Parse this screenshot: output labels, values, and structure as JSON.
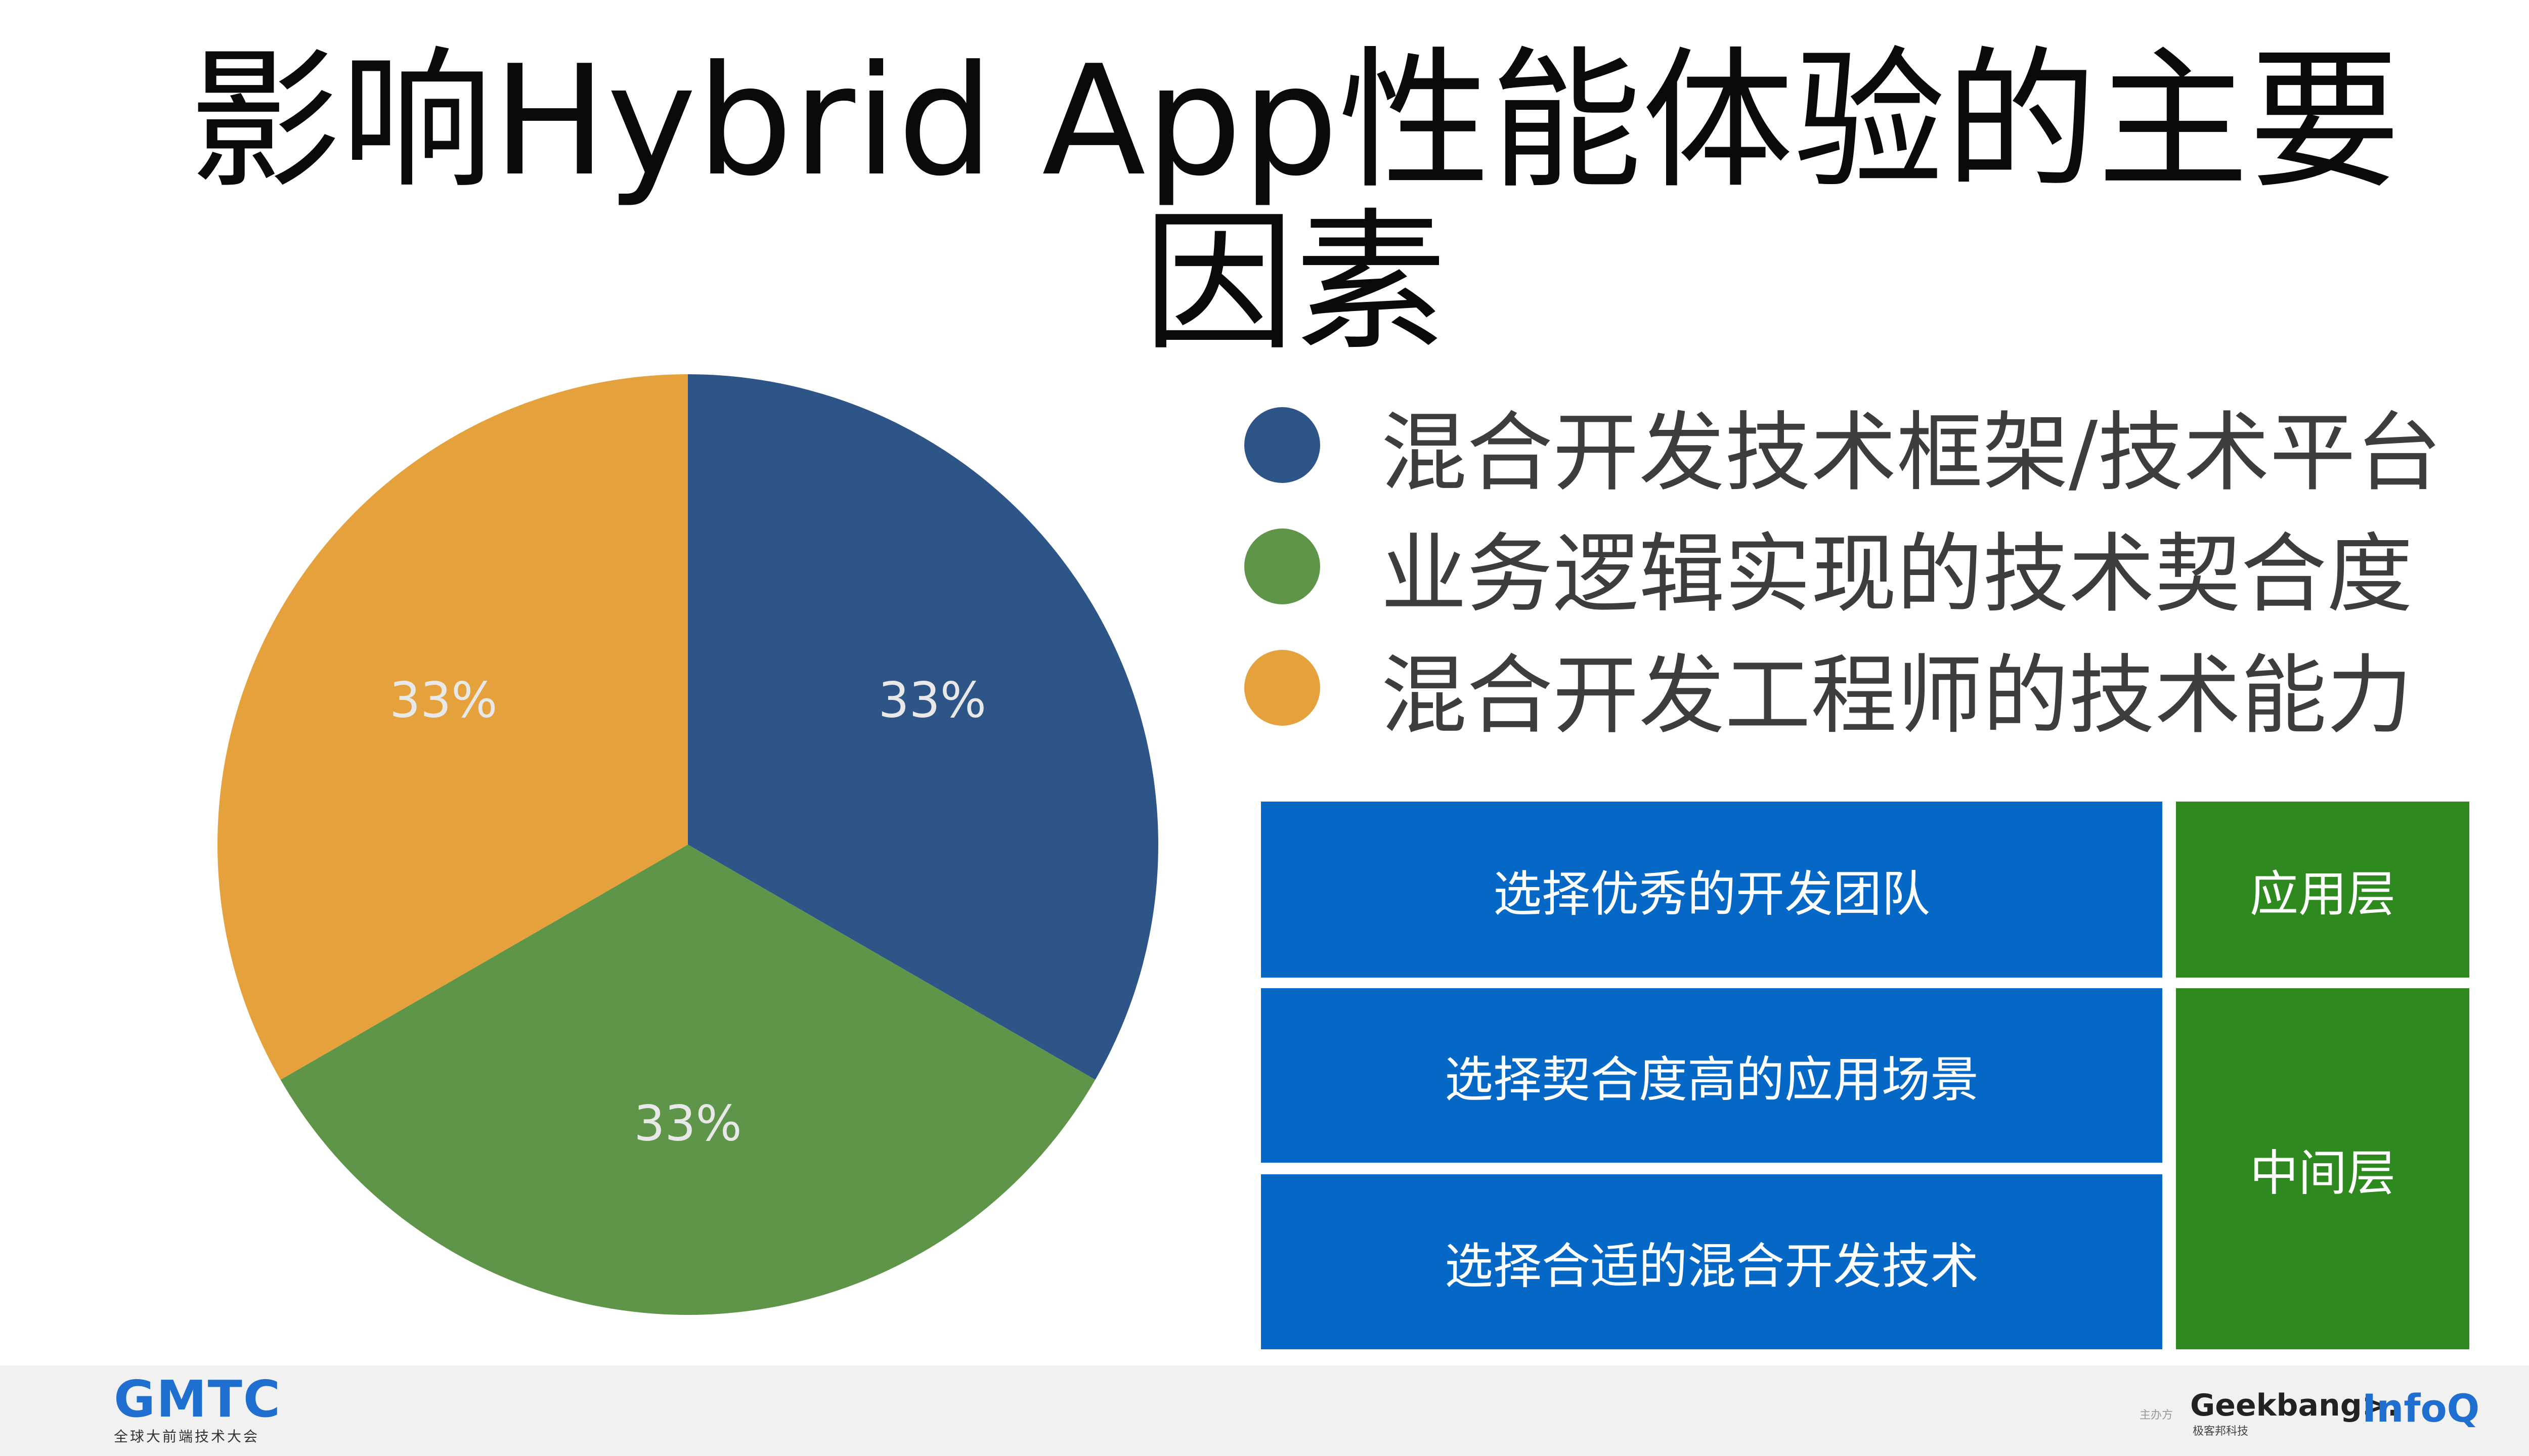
{
  "slide": {
    "title": "影响Hybrid App性能体验的主要因素"
  },
  "chart_data": {
    "type": "pie",
    "categories": [
      "混合开发技术框架/技术平台",
      "业务逻辑实现的技术契合度",
      "混合开发工程师的技术能力"
    ],
    "values": [
      33,
      33,
      33
    ],
    "data_labels": [
      "33%",
      "33%",
      "33%"
    ],
    "colors": [
      "#2e5587",
      "#5e9549",
      "#e5a23c"
    ],
    "label_color": "#e8e8e8",
    "legend_position": "right"
  },
  "legend": [
    {
      "label": "混合开发技术框架/技术平台",
      "color": "#2e5587"
    },
    {
      "label": "业务逻辑实现的技术契合度",
      "color": "#5e9549"
    },
    {
      "label": "混合开发工程师的技术能力",
      "color": "#e5a23c"
    }
  ],
  "table": {
    "rows": [
      {
        "text": "选择优秀的开发团队"
      },
      {
        "text": "选择契合度高的应用场景"
      },
      {
        "text": "选择合适的混合开发技术"
      }
    ],
    "layers": [
      {
        "text": "应用层"
      },
      {
        "text": "中间层"
      }
    ],
    "colors": {
      "blue": "#0568c6",
      "green": "#2e8a1f"
    }
  },
  "footer": {
    "logo_text": "GMTC",
    "logo_subtitle": "全球大前端技术大会",
    "host_label": "主办方",
    "geekbang_text": "Geekbang>.",
    "geekbang_sub": "极客邦科技",
    "infoq_text": "InfoQ"
  }
}
